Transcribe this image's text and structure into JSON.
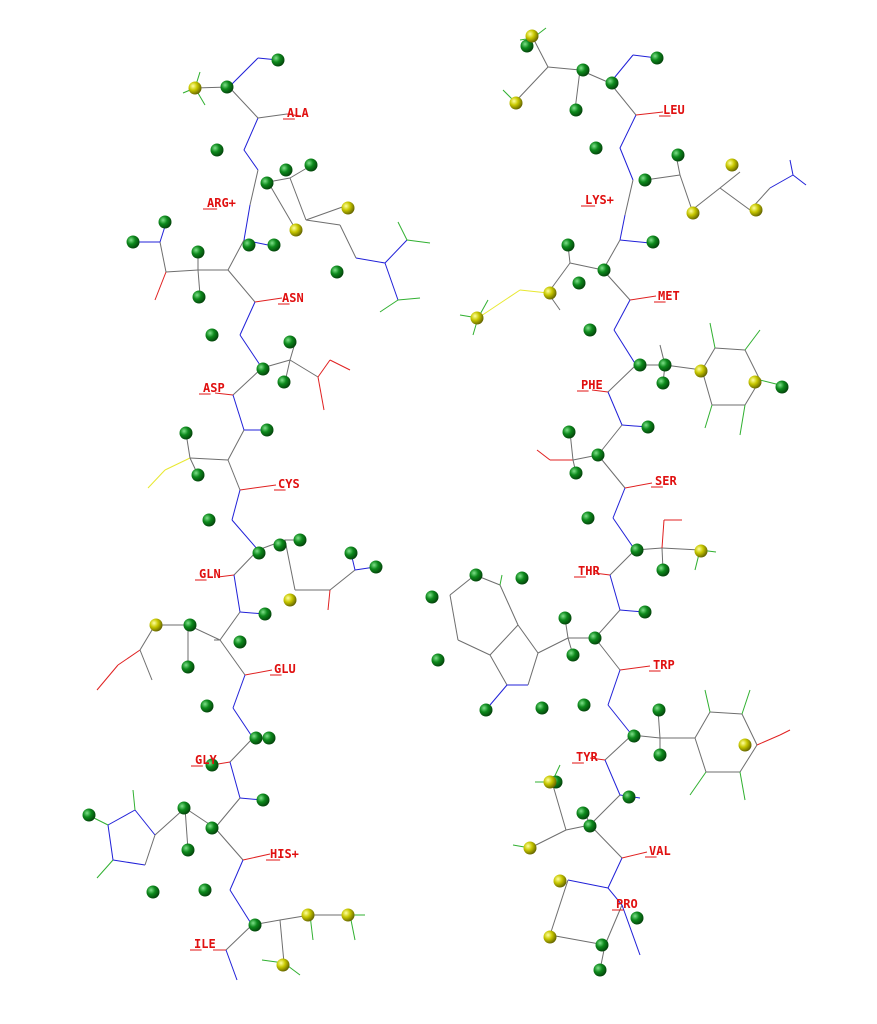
{
  "colors": {
    "background": "#ffffff",
    "carbon_bond": "#6e6e6e",
    "nitrogen_bond": "#2020d8",
    "oxygen_bond": "#e02020",
    "sulfur_bond": "#e8e830",
    "hydrogen_bond": "#30b030",
    "green_atom": "#0d8a1c",
    "yellow_atom": "#c8c800",
    "label": "#e01010"
  },
  "residues": [
    {
      "label": "ALA"
    },
    {
      "label": "ARG+"
    },
    {
      "label": "ASN"
    },
    {
      "label": "ASP"
    },
    {
      "label": "CYS"
    },
    {
      "label": "GLN"
    },
    {
      "label": "GLU"
    },
    {
      "label": "GLY"
    },
    {
      "label": "HIS+"
    },
    {
      "label": "ILE"
    },
    {
      "label": "LEU"
    },
    {
      "label": "LYS+"
    },
    {
      "label": "MET"
    },
    {
      "label": "PHE"
    },
    {
      "label": "SER"
    },
    {
      "label": "THR"
    },
    {
      "label": "TRP"
    },
    {
      "label": "TYR"
    },
    {
      "label": "VAL"
    },
    {
      "label": "PRO"
    }
  ]
}
